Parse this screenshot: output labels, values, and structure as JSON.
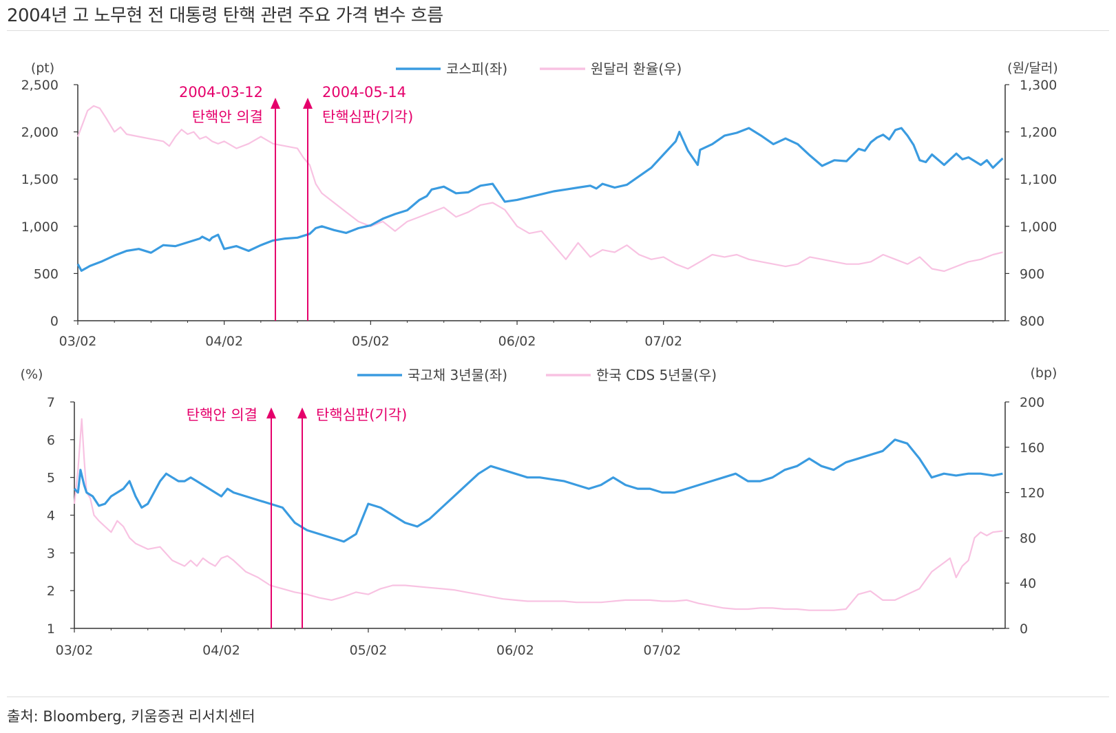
{
  "title": "2004년 고 노무현 전 대통령 탄핵 관련 주요 가격 변수 흐름",
  "source": "출처: Bloomberg, 키움증권 리서치센터",
  "colors": {
    "primary": "#3a9be0",
    "secondary": "#f8c2e2",
    "annotation": "#e5006b",
    "axis": "#333333"
  },
  "chart_data": [
    {
      "type": "line",
      "x_ticks": [
        "03/02",
        "04/02",
        "05/02",
        "06/02",
        "07/02"
      ],
      "y_left": {
        "unit": "(pt)",
        "ylim": [
          0,
          2500
        ],
        "ticks": [
          "0",
          "500",
          "1,000",
          "1,500",
          "2,000",
          "2,500"
        ]
      },
      "y_right": {
        "unit": "(원/달러)",
        "ylim": [
          800,
          1300
        ],
        "ticks": [
          "800",
          "900",
          "1,000",
          "1,100",
          "1,200",
          "1,300"
        ]
      },
      "series": [
        {
          "name": "코스피(좌)",
          "axis": "left",
          "x": [
            0,
            0.3,
            1,
            2,
            3,
            4,
            5,
            6,
            7,
            8,
            9,
            10,
            10.2,
            10.8,
            11,
            11.5,
            12,
            13,
            14,
            15,
            16,
            17,
            18,
            19,
            19.5,
            20,
            21,
            22,
            23,
            24,
            25,
            26,
            27,
            28,
            28.6,
            29,
            30,
            31,
            32,
            33,
            34,
            35,
            36,
            37,
            38,
            39,
            40,
            41,
            42,
            42.5,
            43,
            44,
            45,
            46,
            47,
            48,
            49,
            49.3,
            50,
            50.8,
            51,
            52,
            53,
            54,
            55,
            56,
            57,
            58,
            59,
            60,
            61,
            62,
            63,
            64,
            64.5,
            65,
            65.5,
            66,
            66.5,
            67,
            67.5,
            68,
            68.5,
            69,
            69.5,
            70,
            71,
            72,
            72.5,
            73,
            74,
            74.5,
            75,
            75.8
          ],
          "values": [
            600,
            530,
            580,
            630,
            690,
            740,
            760,
            720,
            800,
            790,
            830,
            870,
            890,
            850,
            880,
            910,
            760,
            790,
            740,
            800,
            850,
            870,
            880,
            920,
            980,
            1000,
            960,
            930,
            980,
            1010,
            1080,
            1130,
            1170,
            1280,
            1320,
            1390,
            1420,
            1350,
            1360,
            1430,
            1450,
            1260,
            1280,
            1310,
            1340,
            1370,
            1390,
            1410,
            1430,
            1400,
            1450,
            1410,
            1440,
            1530,
            1620,
            1760,
            1900,
            2000,
            1800,
            1650,
            1810,
            1870,
            1960,
            1990,
            2040,
            1960,
            1870,
            1930,
            1870,
            1750,
            1640,
            1700,
            1690,
            1820,
            1800,
            1890,
            1940,
            1970,
            1920,
            2020,
            2040,
            1960,
            1860,
            1700,
            1680,
            1760,
            1650,
            1770,
            1710,
            1730,
            1650,
            1700,
            1620,
            1720
          ]
        },
        {
          "name": "원달러 환율(우)",
          "axis": "right",
          "x": [
            0,
            0.3,
            0.8,
            1.3,
            1.8,
            2.3,
            3,
            3.5,
            4,
            5,
            6,
            7,
            7.5,
            8,
            8.5,
            9,
            9.5,
            10,
            10.5,
            11,
            11.5,
            12,
            13,
            14,
            15,
            16,
            17,
            18,
            18.5,
            19,
            19.5,
            20,
            21,
            22,
            23,
            24,
            25,
            26,
            27,
            28,
            29,
            30,
            31,
            32,
            33,
            34,
            35,
            36,
            37,
            38,
            39,
            40,
            41,
            42,
            43,
            44,
            45,
            46,
            47,
            48,
            49,
            50,
            51,
            52,
            53,
            54,
            55,
            56,
            57,
            58,
            59,
            60,
            61,
            62,
            63,
            64,
            65,
            66,
            67,
            68,
            69,
            70,
            71,
            72,
            73,
            74,
            75,
            75.8
          ],
          "values": [
            1190,
            1210,
            1245,
            1255,
            1250,
            1230,
            1200,
            1210,
            1195,
            1190,
            1185,
            1180,
            1170,
            1190,
            1205,
            1195,
            1200,
            1185,
            1190,
            1180,
            1175,
            1180,
            1165,
            1175,
            1190,
            1175,
            1170,
            1165,
            1145,
            1130,
            1090,
            1070,
            1050,
            1030,
            1010,
            1000,
            1010,
            990,
            1010,
            1020,
            1030,
            1040,
            1020,
            1030,
            1045,
            1050,
            1035,
            1000,
            985,
            990,
            960,
            930,
            965,
            935,
            950,
            945,
            960,
            940,
            930,
            935,
            920,
            910,
            925,
            940,
            935,
            940,
            930,
            925,
            920,
            915,
            920,
            935,
            930,
            925,
            920,
            920,
            925,
            940,
            930,
            920,
            935,
            910,
            905,
            915,
            925,
            930,
            940,
            945
          ]
        }
      ],
      "annotations": [
        {
          "date": "2004-03-12",
          "label": "탄핵안 의결"
        },
        {
          "date": "2004-05-14",
          "label": "탄핵심판(기각)"
        }
      ]
    },
    {
      "type": "line",
      "x_ticks": [
        "03/02",
        "04/02",
        "05/02",
        "06/02",
        "07/02"
      ],
      "y_left": {
        "unit": "(%)",
        "ylim": [
          1,
          7
        ],
        "ticks": [
          "1",
          "2",
          "3",
          "4",
          "5",
          "6",
          "7"
        ]
      },
      "y_right": {
        "unit": "(bp)",
        "ylim": [
          0,
          200
        ],
        "ticks": [
          "0",
          "40",
          "80",
          "120",
          "160",
          "200"
        ]
      },
      "series": [
        {
          "name": "국고채 3년물(좌)",
          "axis": "left",
          "x": [
            0,
            0.3,
            0.5,
            0.8,
            1,
            1.5,
            2,
            2.5,
            3,
            3.5,
            4,
            4.5,
            5,
            5.5,
            6,
            6.5,
            7,
            7.5,
            8,
            8.5,
            9,
            9.5,
            10,
            10.5,
            11,
            11.5,
            12,
            12.5,
            13,
            14,
            15,
            16,
            17,
            18,
            19,
            20,
            21,
            22,
            23,
            24,
            25,
            26,
            27,
            28,
            29,
            30,
            31,
            32,
            33,
            34,
            35,
            36,
            37,
            38,
            39,
            40,
            41,
            42,
            43,
            44,
            45,
            46,
            47,
            48,
            49,
            50,
            51,
            52,
            53,
            54,
            55,
            56,
            57,
            58,
            59,
            60,
            61,
            62,
            63,
            64,
            65,
            66,
            67,
            68,
            69,
            70,
            71,
            72,
            73,
            74,
            75,
            75.8
          ],
          "values": [
            4.7,
            4.6,
            5.2,
            4.8,
            4.6,
            4.5,
            4.25,
            4.3,
            4.5,
            4.6,
            4.7,
            4.9,
            4.5,
            4.2,
            4.3,
            4.6,
            4.9,
            5.1,
            5.0,
            4.9,
            4.9,
            5.0,
            4.9,
            4.8,
            4.7,
            4.6,
            4.5,
            4.7,
            4.6,
            4.5,
            4.4,
            4.3,
            4.2,
            3.8,
            3.6,
            3.5,
            3.4,
            3.3,
            3.5,
            4.3,
            4.2,
            4.0,
            3.8,
            3.7,
            3.9,
            4.2,
            4.5,
            4.8,
            5.1,
            5.3,
            5.2,
            5.1,
            5.0,
            5.0,
            4.95,
            4.9,
            4.8,
            4.7,
            4.8,
            5.0,
            4.8,
            4.7,
            4.7,
            4.6,
            4.6,
            4.7,
            4.8,
            4.9,
            5.0,
            5.1,
            4.9,
            4.9,
            5.0,
            5.2,
            5.3,
            5.5,
            5.3,
            5.2,
            5.4,
            5.5,
            5.6,
            5.7,
            6.0,
            5.9,
            5.5,
            5.0,
            5.1,
            5.05,
            5.1,
            5.1,
            5.05,
            5.1
          ],
          "x_note": "months since 2003-02-01"
        },
        {
          "name": "한국 CDS 5년물(우)",
          "axis": "right",
          "x": [
            0,
            0.3,
            0.6,
            0.8,
            1,
            1.3,
            1.6,
            2,
            2.5,
            3,
            3.5,
            4,
            4.5,
            5,
            6,
            7,
            8,
            9,
            9.5,
            10,
            10.5,
            11,
            11.5,
            12,
            12.5,
            13,
            14,
            15,
            16,
            17,
            18,
            19,
            20,
            21,
            22,
            23,
            24,
            25,
            26,
            27,
            28,
            29,
            30,
            31,
            32,
            33,
            34,
            35,
            36,
            37,
            38,
            39,
            40,
            41,
            42,
            43,
            44,
            45,
            46,
            47,
            48,
            49,
            50,
            51,
            52,
            53,
            54,
            55,
            56,
            57,
            58,
            59,
            60,
            61,
            62,
            63,
            64,
            65,
            66,
            67,
            68,
            69,
            70,
            71,
            71.5,
            72,
            72.5,
            73,
            73.5,
            74,
            74.5,
            75,
            75.8
          ],
          "values": [
            110,
            140,
            185,
            150,
            120,
            115,
            100,
            95,
            90,
            85,
            95,
            90,
            80,
            75,
            70,
            72,
            60,
            55,
            60,
            55,
            62,
            58,
            55,
            62,
            64,
            60,
            50,
            45,
            38,
            35,
            32,
            30,
            27,
            25,
            28,
            32,
            30,
            35,
            38,
            38,
            37,
            36,
            35,
            34,
            32,
            30,
            28,
            26,
            25,
            24,
            24,
            24,
            24,
            23,
            23,
            23,
            24,
            25,
            25,
            25,
            24,
            24,
            25,
            22,
            20,
            18,
            17,
            17,
            18,
            18,
            17,
            17,
            16,
            16,
            16,
            17,
            30,
            33,
            25,
            25,
            30,
            35,
            50,
            58,
            62,
            45,
            55,
            60,
            80,
            85,
            82,
            85,
            86
          ]
        }
      ],
      "annotations": [
        {
          "date": "2004-03-12",
          "label": "탄핵안 의결"
        },
        {
          "date": "2004-05-14",
          "label": "탄핵심판(기각)"
        }
      ]
    }
  ]
}
